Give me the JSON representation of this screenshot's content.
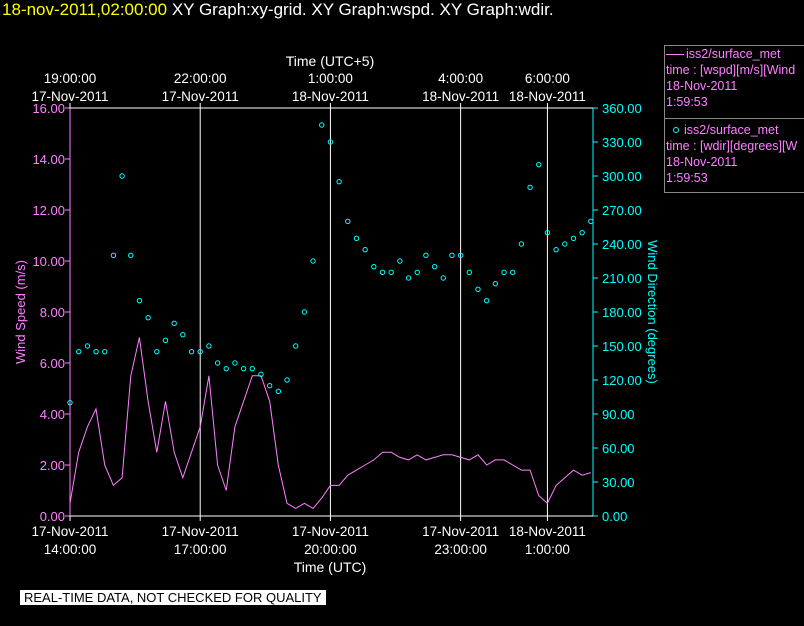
{
  "header": {
    "date": "18-nov-2011,02:00:00",
    "graphs": "XY Graph:xy-grid.  XY Graph:wspd.  XY Graph:wdir."
  },
  "legend": [
    {
      "name": "iss2/surface_met",
      "line2": "time : [wspd][m/s][Wind",
      "line3": "18-Nov-2011",
      "line4": "1:59:53",
      "color": "#ff80ff",
      "marker": "line"
    },
    {
      "name": "iss2/surface_met",
      "line2": "time : [wdir][degrees][W",
      "line3": "18-Nov-2011",
      "line4": "1:59:53",
      "color": "#00ffff",
      "marker": "circle"
    }
  ],
  "disclaimer": "REAL-TIME DATA, NOT CHECKED FOR QUALITY",
  "chart_data": {
    "type": "line",
    "top_axis": {
      "label": "Time (UTC+5)",
      "ticks": [
        {
          "time": "19:00:00",
          "date": "17-Nov-2011",
          "hours": 0
        },
        {
          "time": "22:00:00",
          "date": "17-Nov-2011",
          "hours": 3
        },
        {
          "time": "1:00:00",
          "date": "18-Nov-2011",
          "hours": 6
        },
        {
          "time": "4:00:00",
          "date": "18-Nov-2011",
          "hours": 9
        },
        {
          "time": "6:00:00",
          "date": "18-Nov-2011",
          "hours": 11
        }
      ]
    },
    "bottom_axis": {
      "label": "Time (UTC)",
      "ticks": [
        {
          "date": "17-Nov-2011",
          "time": "14:00:00",
          "hours": 0
        },
        {
          "date": "17-Nov-2011",
          "time": "17:00:00",
          "hours": 3
        },
        {
          "date": "17-Nov-2011",
          "time": "20:00:00",
          "hours": 6
        },
        {
          "date": "17-Nov-2011",
          "time": "23:00:00",
          "hours": 9
        },
        {
          "date": "18-Nov-2011",
          "time": "1:00:00",
          "hours": 11
        }
      ]
    },
    "xlim_hours": [
      0,
      12.05
    ],
    "grid_hours": [
      3,
      6,
      9,
      11
    ],
    "left_axis": {
      "label": "Wind Speed (m/s)",
      "ylim": [
        0,
        16
      ],
      "ticks": [
        "0.00",
        "2.00",
        "4.00",
        "6.00",
        "8.00",
        "10.00",
        "12.00",
        "14.00",
        "16.00"
      ],
      "color": "#ff80ff"
    },
    "right_axis": {
      "label": "Wind Direction (degrees)",
      "ylim": [
        0,
        360
      ],
      "ticks": [
        "0.00",
        "30.00",
        "60.00",
        "90.00",
        "120.00",
        "150.00",
        "180.00",
        "210.00",
        "240.00",
        "270.00",
        "300.00",
        "330.00",
        "360.00"
      ],
      "color": "#00ffff"
    },
    "series": [
      {
        "name": "iss2/surface_met wspd",
        "axis": "left",
        "style": "line",
        "color": "#ff80ff",
        "x": [
          0,
          0.2,
          0.4,
          0.6,
          0.8,
          1.0,
          1.2,
          1.4,
          1.6,
          1.8,
          2.0,
          2.2,
          2.4,
          2.6,
          2.8,
          3.0,
          3.2,
          3.4,
          3.6,
          3.8,
          4.0,
          4.2,
          4.4,
          4.6,
          4.8,
          5.0,
          5.2,
          5.4,
          5.6,
          5.8,
          6.0,
          6.2,
          6.4,
          6.6,
          6.8,
          7.0,
          7.2,
          7.4,
          7.6,
          7.8,
          8.0,
          8.2,
          8.4,
          8.6,
          8.8,
          9.0,
          9.2,
          9.4,
          9.6,
          9.8,
          10.0,
          10.2,
          10.4,
          10.6,
          10.8,
          11.0,
          11.2,
          11.4,
          11.6,
          11.8,
          12.0
        ],
        "values": [
          0.5,
          2.5,
          3.5,
          4.2,
          2.0,
          1.2,
          1.5,
          5.5,
          7.0,
          4.5,
          2.5,
          4.5,
          2.5,
          1.5,
          2.5,
          3.5,
          5.5,
          2.0,
          1.0,
          3.5,
          4.5,
          5.5,
          5.5,
          4.5,
          2.0,
          0.5,
          0.3,
          0.5,
          0.3,
          0.7,
          1.2,
          1.2,
          1.6,
          1.8,
          2.0,
          2.2,
          2.5,
          2.5,
          2.3,
          2.2,
          2.4,
          2.2,
          2.3,
          2.4,
          2.4,
          2.3,
          2.2,
          2.4,
          2.0,
          2.2,
          2.2,
          2.0,
          1.8,
          1.8,
          0.8,
          0.5,
          1.2,
          1.5,
          1.8,
          1.6,
          1.7
        ]
      },
      {
        "name": "iss2/surface_met wdir",
        "axis": "right",
        "style": "scatter",
        "color": "#00ffff",
        "x": [
          0,
          0.2,
          0.4,
          0.6,
          0.8,
          1.0,
          1.2,
          1.4,
          1.6,
          1.8,
          2.0,
          2.2,
          2.4,
          2.6,
          2.8,
          3.0,
          3.2,
          3.4,
          3.6,
          3.8,
          4.0,
          4.2,
          4.4,
          4.6,
          4.8,
          5.0,
          5.2,
          5.4,
          5.6,
          5.8,
          6.0,
          6.2,
          6.4,
          6.6,
          6.8,
          7.0,
          7.2,
          7.4,
          7.6,
          7.8,
          8.0,
          8.2,
          8.4,
          8.6,
          8.8,
          9.0,
          9.2,
          9.4,
          9.6,
          9.8,
          10.0,
          10.2,
          10.4,
          10.6,
          10.8,
          11.0,
          11.2,
          11.4,
          11.6,
          11.8,
          12.0
        ],
        "values": [
          100,
          145,
          150,
          145,
          145,
          230,
          300,
          230,
          190,
          175,
          145,
          155,
          170,
          160,
          145,
          145,
          150,
          135,
          130,
          135,
          130,
          130,
          125,
          115,
          110,
          120,
          150,
          180,
          225,
          345,
          330,
          295,
          260,
          245,
          235,
          220,
          215,
          215,
          225,
          210,
          215,
          230,
          220,
          210,
          230,
          230,
          215,
          200,
          190,
          205,
          215,
          215,
          240,
          290,
          310,
          250,
          235,
          240,
          245,
          250,
          260
        ]
      }
    ]
  }
}
